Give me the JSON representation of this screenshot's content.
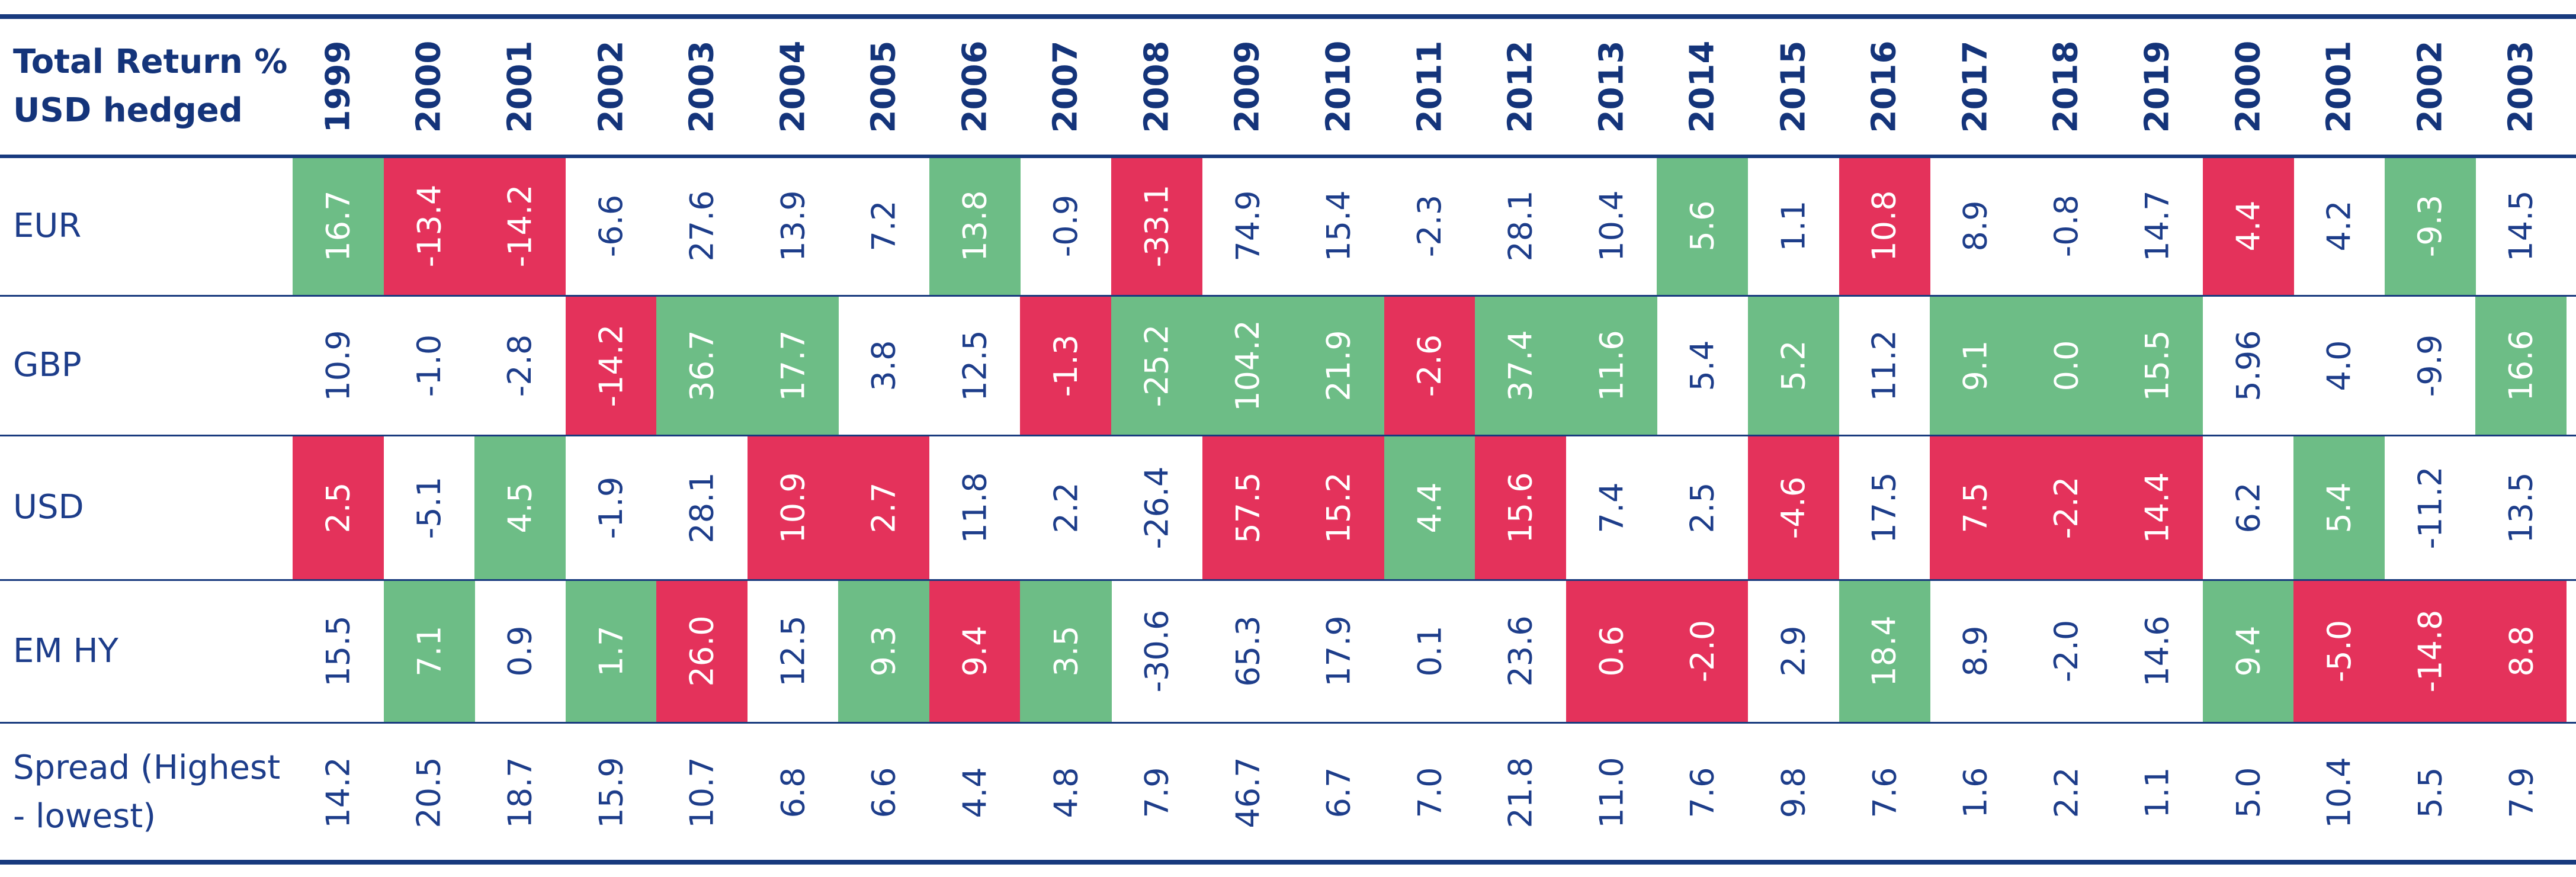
{
  "header": {
    "title": [
      "Total Return %",
      "USD hedged"
    ],
    "years": [
      "1999",
      "2000",
      "2001",
      "2002",
      "2003",
      "2004",
      "2005",
      "2006",
      "2007",
      "2008",
      "2009",
      "2010",
      "2011",
      "2012",
      "2013",
      "2014",
      "2015",
      "2016",
      "2017",
      "2018",
      "2019",
      "2000",
      "2001",
      "2002",
      "2003"
    ]
  },
  "colors": {
    "green": "#6dbd86",
    "red": "#e4325b"
  },
  "rows": [
    {
      "label": [
        "EUR"
      ],
      "values": [
        "16.7",
        "-13.4",
        "-14.2",
        "-6.6",
        "27.6",
        "13.9",
        "7.2",
        "13.8",
        "-0.9",
        "-33.1",
        "74.9",
        "15.4",
        "-2.3",
        "28.1",
        "10.4",
        "5.6",
        "1.1",
        "10.8",
        "8.9",
        "-0.8",
        "14.7",
        "4.4",
        "4.2",
        "-9.3",
        "14.5"
      ],
      "highlight": [
        "green",
        "red",
        "red",
        null,
        null,
        null,
        null,
        "green",
        null,
        "red",
        null,
        null,
        null,
        null,
        null,
        "green",
        null,
        "red",
        null,
        null,
        null,
        "red",
        null,
        "green",
        null
      ]
    },
    {
      "label": [
        "GBP"
      ],
      "values": [
        "10.9",
        "-1.0",
        "-2.8",
        "-14.2",
        "36.7",
        "17.7",
        "3.8",
        "12.5",
        "-1.3",
        "-25.2",
        "104.2",
        "21.9",
        "-2.6",
        "37.4",
        "11.6",
        "5.4",
        "5.2",
        "11.2",
        "9.1",
        "0.0",
        "15.5",
        "5.96",
        "4.0",
        "-9.9",
        "16.6"
      ],
      "highlight": [
        null,
        null,
        null,
        "red",
        "green",
        "green",
        null,
        null,
        "red",
        "green",
        "green",
        "green",
        "red",
        "green",
        "green",
        null,
        "green",
        null,
        "green",
        "green",
        "green",
        null,
        null,
        null,
        "green"
      ]
    },
    {
      "label": [
        "USD"
      ],
      "values": [
        "2.5",
        "-5.1",
        "4.5",
        "-1.9",
        "28.1",
        "10.9",
        "2.7",
        "11.8",
        "2.2",
        "-26.4",
        "57.5",
        "15.2",
        "4.4",
        "15.6",
        "7.4",
        "2.5",
        "-4.6",
        "17.5",
        "7.5",
        "-2.2",
        "14.4",
        "6.2",
        "5.4",
        "-11.2",
        "13.5"
      ],
      "highlight": [
        "red",
        null,
        "green",
        null,
        null,
        "red",
        "red",
        null,
        null,
        null,
        "red",
        "red",
        "green",
        "red",
        null,
        null,
        "red",
        null,
        "red",
        "red",
        "red",
        null,
        "green",
        null,
        null
      ]
    },
    {
      "label": [
        "EM HY"
      ],
      "values": [
        "15.5",
        "7.1",
        "0.9",
        "1.7",
        "26.0",
        "12.5",
        "9.3",
        "9.4",
        "3.5",
        "-30.6",
        "65.3",
        "17.9",
        "0.1",
        "23.6",
        "0.6",
        "-2.0",
        "2.9",
        "18.4",
        "8.9",
        "-2.0",
        "14.6",
        "9.4",
        "-5.0",
        "-14.8",
        "8.8"
      ],
      "highlight": [
        null,
        "green",
        null,
        "green",
        "red",
        null,
        "green",
        "red",
        "green",
        null,
        null,
        null,
        null,
        null,
        "red",
        "red",
        null,
        "green",
        null,
        null,
        null,
        "green",
        "red",
        "red",
        "red"
      ]
    },
    {
      "label": [
        "Spread (Highest",
        "- lowest)"
      ],
      "values": [
        "14.2",
        "20.5",
        "18.7",
        "15.9",
        "10.7",
        "6.8",
        "6.6",
        "4.4",
        "4.8",
        "7.9",
        "46.7",
        "6.7",
        "7.0",
        "21.8",
        "11.0",
        "7.6",
        "9.8",
        "7.6",
        "1.6",
        "2.2",
        "1.1",
        "5.0",
        "10.4",
        "5.5",
        "7.9"
      ],
      "highlight": [
        null,
        null,
        null,
        null,
        null,
        null,
        null,
        null,
        null,
        null,
        null,
        null,
        null,
        null,
        null,
        null,
        null,
        null,
        null,
        null,
        null,
        null,
        null,
        null,
        null
      ]
    }
  ]
}
